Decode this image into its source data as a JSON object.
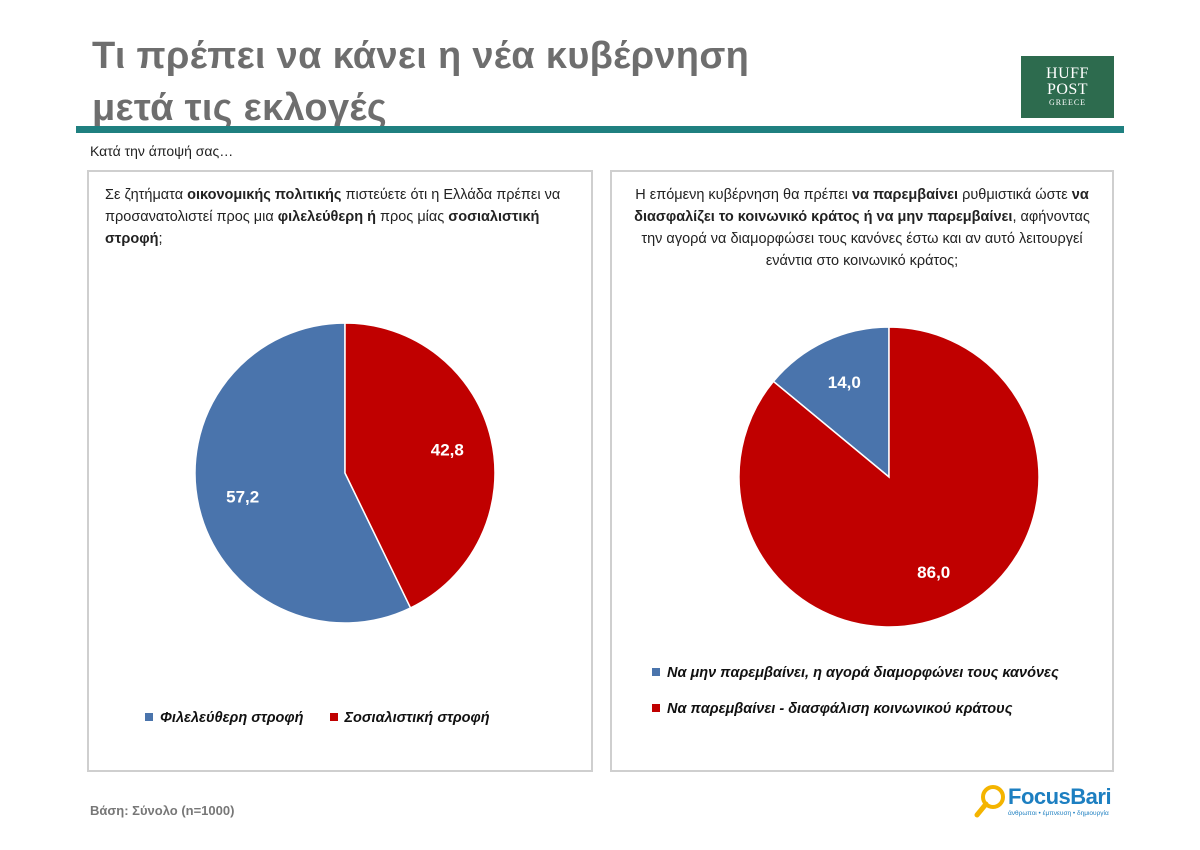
{
  "header": {
    "title_line1": "Τι πρέπει να κάνει η νέα κυβέρνηση",
    "title_line2": "μετά τις εκλογές",
    "logo_line1": "HUFF",
    "logo_line2": "POST",
    "logo_line3": "GREECE"
  },
  "subtitle": "Κατά την άποψή σας…",
  "left_panel": {
    "q_1": "Σε ζητήματα ",
    "q_2": "οικονομικής πολιτικής",
    "q_3": " πιστεύετε ότι η Ελλάδα πρέπει να προσανατολιστεί προς μια ",
    "q_4": "φιλελεύθερη ή",
    "q_5": " προς μίας ",
    "q_6": "σοσιαλιστική στροφή",
    "q_7": ";"
  },
  "right_panel": {
    "q_1": "Η επόμενη κυβέρνηση θα πρέπει ",
    "q_2": "να παρεμβαίνει",
    "q_3": " ρυθμιστικά ώστε ",
    "q_4": "να διασφαλίζει το κοινωνικό κράτος ή να μην παρεμβαίνει",
    "q_5": ", αφήνοντας την αγορά να διαμορφώσει τους κανόνες έστω και αν αυτό λειτουργεί ενάντια στο κοινωνικό κράτος;"
  },
  "chart_data": [
    {
      "type": "pie",
      "categories": [
        "Φιλελεύθερη στροφή",
        "Σοσιαλιστική στροφή"
      ],
      "values": [
        57.2,
        42.8
      ],
      "labels": [
        "57,2",
        "42,8"
      ],
      "colors": [
        "#4a74ac",
        "#c00000"
      ],
      "legend": "bottom"
    },
    {
      "type": "pie",
      "categories": [
        "Να μην παρεμβαίνει, η αγορά διαμορφώνει τους κανόνες",
        "Να παρεμβαίνει - διασφάλιση κοινωνικού κράτους"
      ],
      "values": [
        14.0,
        86.0
      ],
      "labels": [
        "14,0",
        "86,0"
      ],
      "colors": [
        "#4a74ac",
        "#c00000"
      ],
      "legend": "bottom"
    }
  ],
  "footer": {
    "base": "Βάση: Σύνολο (n=1000)",
    "brand": "FocusBari",
    "tagline": "άνθρωποι • έμπνευση • δημιουργία"
  }
}
